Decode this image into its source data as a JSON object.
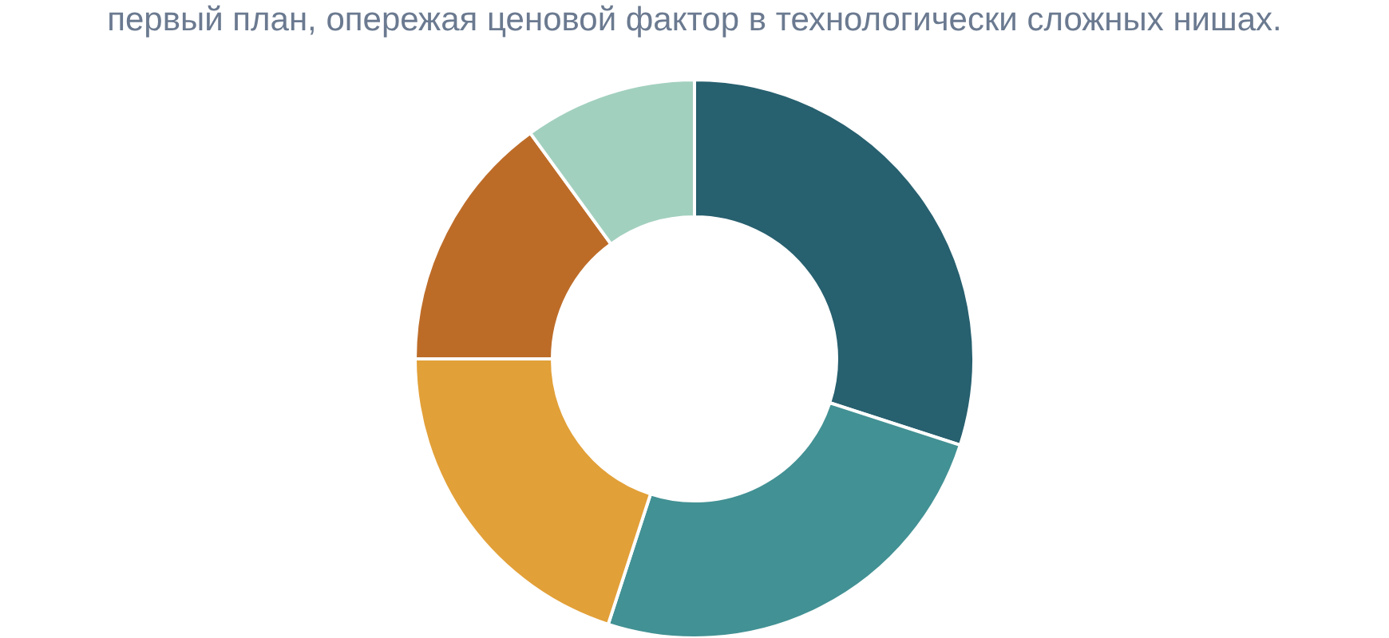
{
  "chart_data": {
    "type": "donut",
    "title": "первый план, опережая ценовой фактор в технологически сложных нишах.",
    "categories": [
      null,
      null,
      null,
      null,
      null
    ],
    "values": [
      30,
      25,
      20,
      15,
      10
    ],
    "colors": [
      "#27606f",
      "#429194",
      "#e2a038",
      "#bd6c28",
      "#a2d0bf"
    ]
  }
}
